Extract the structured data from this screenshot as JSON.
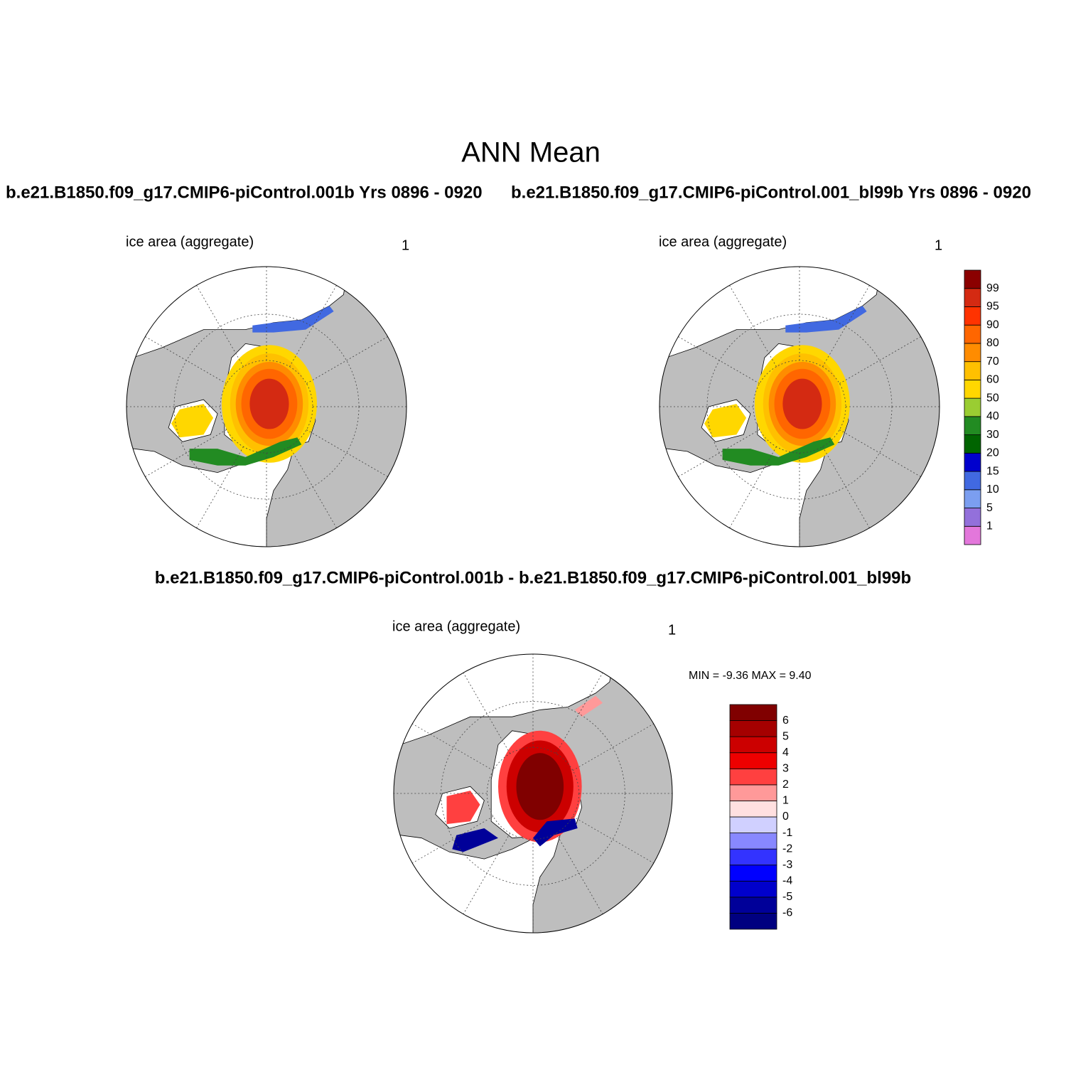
{
  "title": "ANN Mean",
  "panels": [
    {
      "title": "b.e21.B1850.f09_g17.CMIP6-piControl.001b  Yrs 0896 - 0920",
      "subtitle": "ice area  (aggregate)",
      "units": "1"
    },
    {
      "title": "b.e21.B1850.f09_g17.CMIP6-piControl.001_bl99b  Yrs 0896 - 0920",
      "subtitle": "ice area  (aggregate)",
      "units": "1"
    },
    {
      "title": "b.e21.B1850.f09_g17.CMIP6-piControl.001b - b.e21.B1850.f09_g17.CMIP6-piControl.001_bl99b",
      "subtitle": "ice area  (aggregate)",
      "units": "1",
      "stats": "MIN =  -9.36 MAX =   9.40"
    }
  ],
  "colorbars": [
    {
      "labels": [
        "1",
        "5",
        "10",
        "15",
        "20",
        "30",
        "40",
        "50",
        "60",
        "70",
        "80",
        "90",
        "95",
        "99"
      ],
      "colors": [
        "#e377db",
        "#9370db",
        "#7b9ef0",
        "#4169e1",
        "#0000cd",
        "#006400",
        "#228b22",
        "#9acd32",
        "#ffd700",
        "#ffc000",
        "#ff8c00",
        "#ff6600",
        "#ff3300",
        "#d42a12",
        "#8b0000"
      ]
    },
    {
      "labels": [
        "-6",
        "-5",
        "-4",
        "-3",
        "-2",
        "-1",
        "0",
        "1",
        "2",
        "3",
        "4",
        "5",
        "6"
      ],
      "colors": [
        "#000080",
        "#000099",
        "#0000cc",
        "#0000ff",
        "#3333ff",
        "#8888ff",
        "#d0d0ff",
        "#ffe0e0",
        "#ff9999",
        "#ff4040",
        "#ee0000",
        "#cc0000",
        "#a50000",
        "#800000"
      ]
    }
  ]
}
